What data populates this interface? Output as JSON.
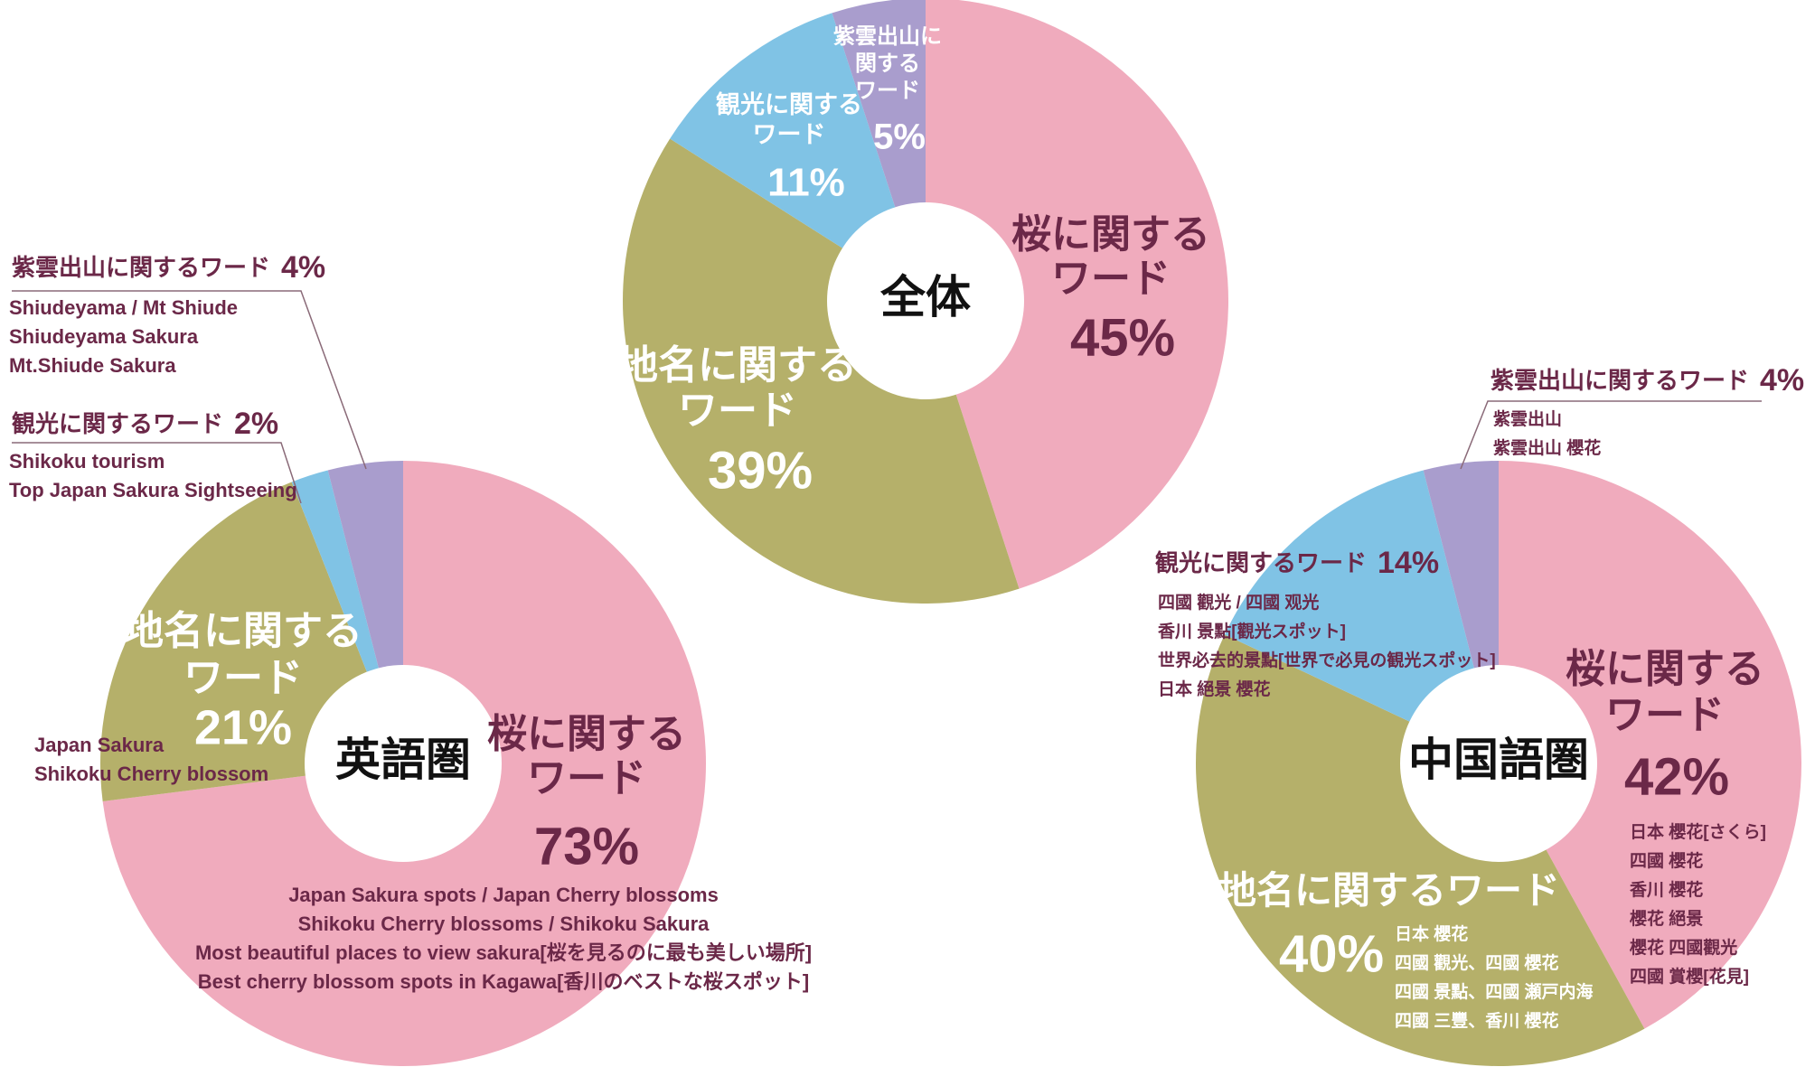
{
  "chart_data": [
    {
      "type": "pie",
      "center_label": "全体",
      "categories": [
        "桜に関するワード",
        "地名に関するワード",
        "観光に関するワード",
        "紫雲出山に関するワード"
      ],
      "values": [
        45,
        39,
        11,
        5
      ],
      "value_labels": [
        "45%",
        "39%",
        "11%",
        "5%"
      ],
      "colors": [
        "#f0abbd",
        "#b5b06a",
        "#80c3e5",
        "#a99dcd"
      ]
    },
    {
      "type": "pie",
      "center_label": "英語圏",
      "categories": [
        "桜に関するワード",
        "地名に関するワード",
        "観光に関するワード",
        "紫雲出山に関するワード"
      ],
      "values": [
        73,
        21,
        2,
        4
      ],
      "value_labels": [
        "73%",
        "21%",
        "2%",
        "4%"
      ],
      "colors": [
        "#f0abbd",
        "#b5b06a",
        "#80c3e5",
        "#a99dcd"
      ],
      "keywords": [
        [
          "Japan Sakura spots /  Japan Cherry blossoms",
          "Shikoku Cherry blossoms / Shikoku Sakura",
          "Most beautiful places to view sakura[桜を見るのに最も美しい場所]",
          "Best cherry blossom spots in Kagawa[香川のベストな桜スポット]"
        ],
        [
          "Japan Sakura",
          "Shikoku Cherry blossom"
        ],
        [
          "Shikoku tourism",
          "Top Japan Sakura Sightseeing"
        ],
        [
          "Shiudeyama / Mt Shiude",
          "Shiudeyama Sakura",
          "Mt.Shiude Sakura"
        ]
      ]
    },
    {
      "type": "pie",
      "center_label": "中国語圏",
      "categories": [
        "桜に関するワード",
        "地名に関するワード",
        "観光に関するワード",
        "紫雲出山に関するワード"
      ],
      "values": [
        42,
        40,
        14,
        4
      ],
      "value_labels": [
        "42%",
        "40%",
        "14%",
        "4%"
      ],
      "colors": [
        "#f0abbd",
        "#b5b06a",
        "#80c3e5",
        "#a99dcd"
      ],
      "keywords": [
        [
          "日本 櫻花[さくら]",
          "四國 櫻花",
          "香川 櫻花",
          "櫻花 絕景",
          "櫻花 四國觀光",
          "四國 賞櫻[花見]"
        ],
        [
          "日本 櫻花",
          "四國 觀光、四國 櫻花",
          "四國 景點、四國 瀬戸内海",
          "四國 三豐、香川 櫻花"
        ],
        [
          "四國 觀光 / 四國 观光",
          "香川 景點[觀光スポット]",
          "世界必去的景點[世界で必見の観光スポット]",
          "日本 絕景 櫻花"
        ],
        [
          "紫雲出山",
          "紫雲出山 櫻花"
        ]
      ]
    }
  ]
}
